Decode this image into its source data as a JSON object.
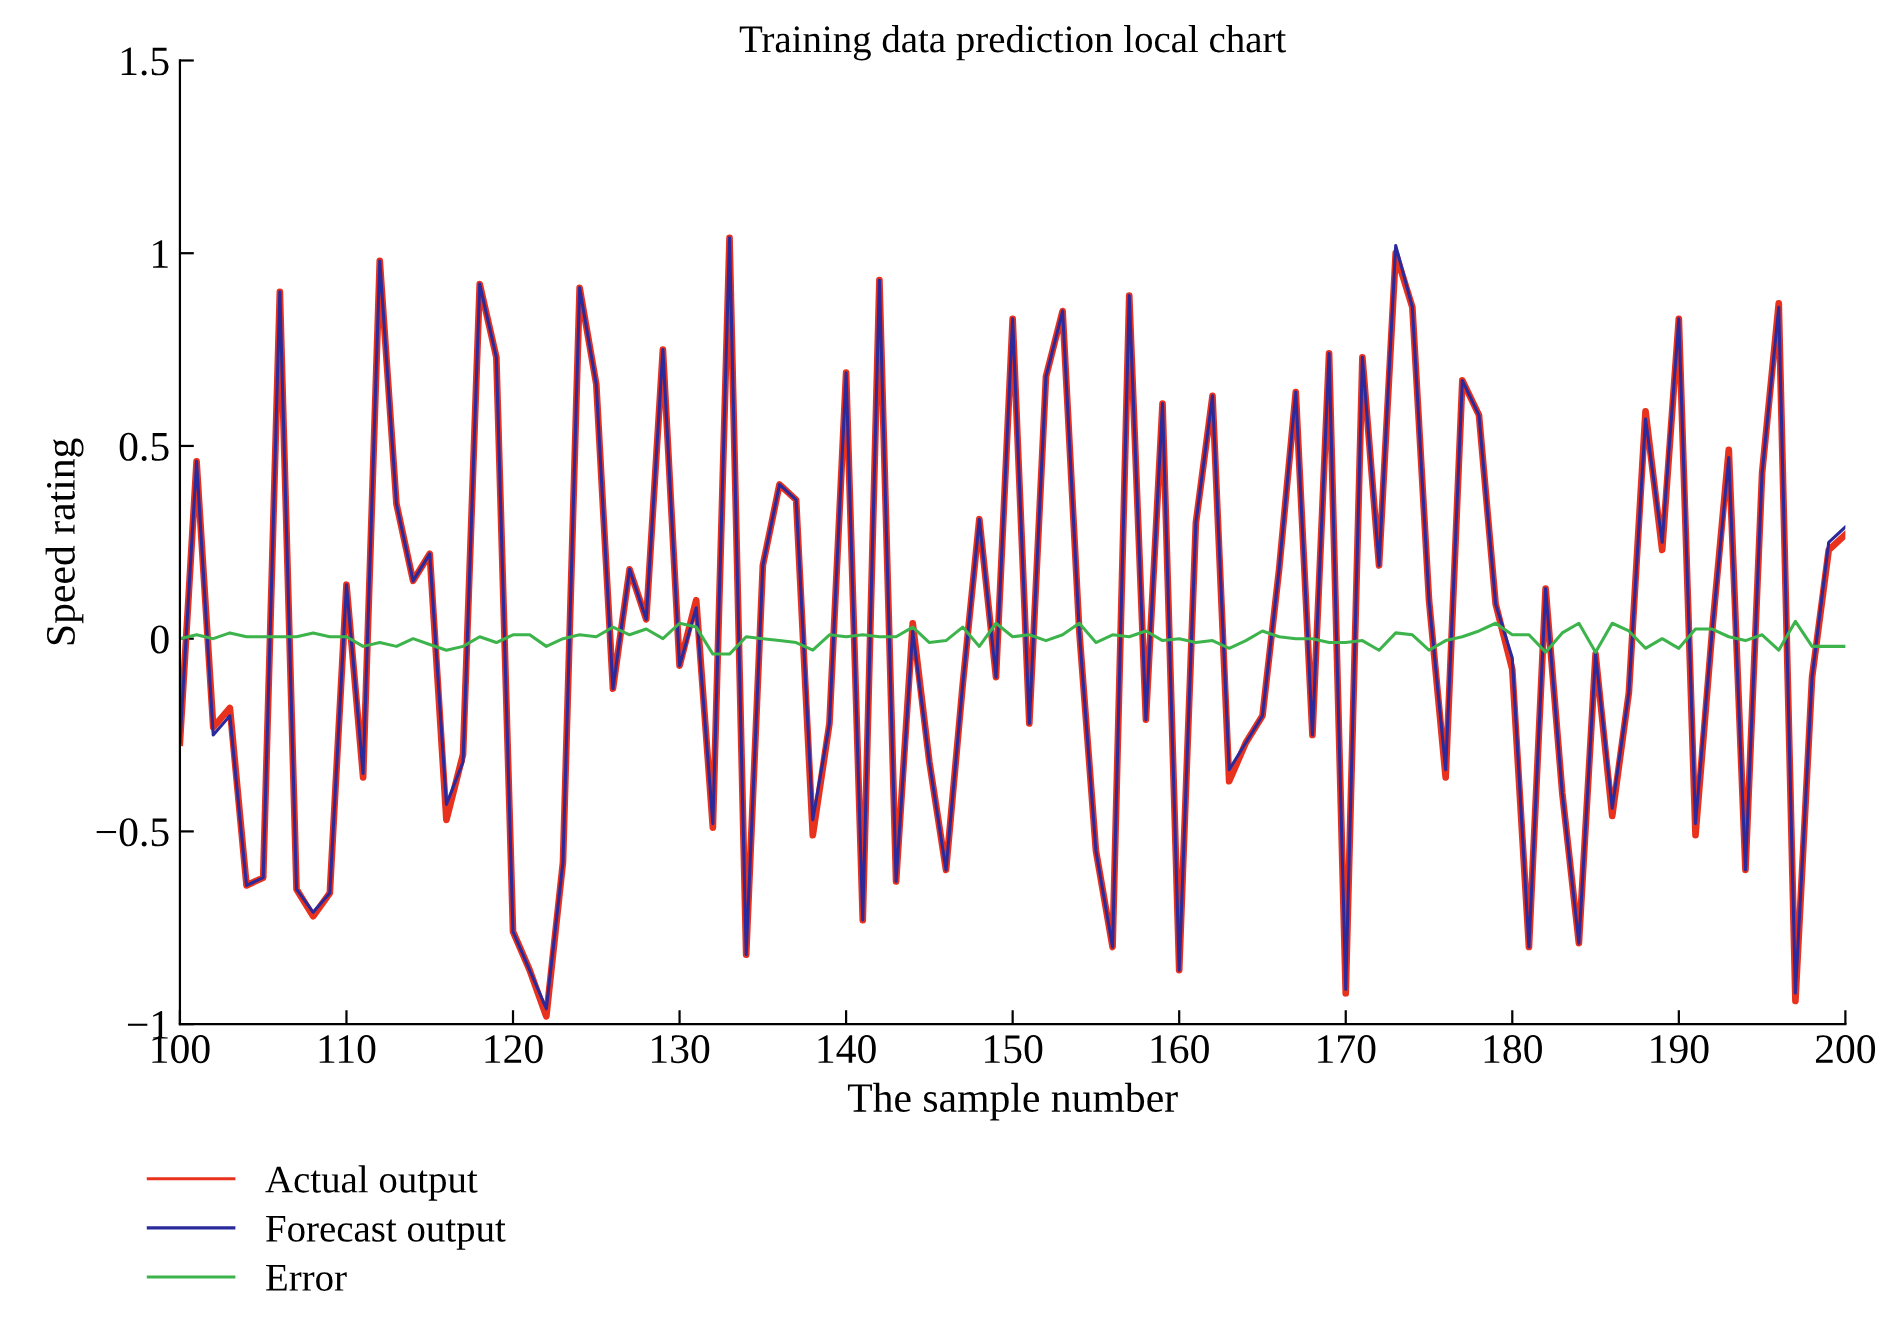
{
  "chart_data": {
    "type": "line",
    "title": "Training data prediction local chart",
    "xlabel": "The sample number",
    "ylabel": "Speed rating",
    "x": [
      100,
      101,
      102,
      103,
      104,
      105,
      106,
      107,
      108,
      109,
      110,
      111,
      112,
      113,
      114,
      115,
      116,
      117,
      118,
      119,
      120,
      121,
      122,
      123,
      124,
      125,
      126,
      127,
      128,
      129,
      130,
      131,
      132,
      133,
      134,
      135,
      136,
      137,
      138,
      139,
      140,
      141,
      142,
      143,
      144,
      145,
      146,
      147,
      148,
      149,
      150,
      151,
      152,
      153,
      154,
      155,
      156,
      157,
      158,
      159,
      160,
      161,
      162,
      163,
      164,
      165,
      166,
      167,
      168,
      169,
      170,
      171,
      172,
      173,
      174,
      175,
      176,
      177,
      178,
      179,
      180,
      181,
      182,
      183,
      184,
      185,
      186,
      187,
      188,
      189,
      190,
      191,
      192,
      193,
      194,
      195,
      196,
      197,
      198,
      199,
      200
    ],
    "series": [
      {
        "name": "Actual output",
        "color": "#e8321e",
        "values": [
          -0.27,
          0.46,
          -0.23,
          -0.18,
          -0.64,
          -0.62,
          0.9,
          -0.65,
          -0.72,
          -0.66,
          0.14,
          -0.36,
          0.98,
          0.35,
          0.15,
          0.22,
          -0.47,
          -0.3,
          0.92,
          0.73,
          -0.76,
          -0.86,
          -0.98,
          -0.58,
          0.91,
          0.66,
          -0.13,
          0.18,
          0.05,
          0.75,
          -0.07,
          0.1,
          -0.49,
          1.04,
          -0.82,
          0.19,
          0.4,
          0.36,
          -0.51,
          -0.22,
          0.69,
          -0.73,
          0.93,
          -0.63,
          0.04,
          -0.32,
          -0.6,
          -0.12,
          0.31,
          -0.1,
          0.83,
          -0.22,
          0.68,
          0.85,
          0.02,
          -0.55,
          -0.8,
          0.89,
          -0.21,
          0.61,
          -0.86,
          0.3,
          0.63,
          -0.37,
          -0.27,
          -0.2,
          0.18,
          0.64,
          -0.25,
          0.74,
          -0.92,
          0.73,
          0.19,
          1.0,
          0.86,
          0.1,
          -0.36,
          0.67,
          0.58,
          0.09,
          -0.08,
          -0.8,
          0.13,
          -0.4,
          -0.79,
          -0.04,
          -0.46,
          -0.14,
          0.59,
          0.23,
          0.83,
          -0.51,
          0.02,
          0.49,
          -0.6,
          0.43,
          0.87,
          -0.94,
          -0.1,
          0.23,
          0.27
        ]
      },
      {
        "name": "Forecast output",
        "color": "#2a2a9c",
        "values": [
          -0.27,
          0.46,
          -0.25,
          -0.2,
          -0.64,
          -0.62,
          0.9,
          -0.65,
          -0.71,
          -0.66,
          0.14,
          -0.35,
          0.98,
          0.35,
          0.15,
          0.22,
          -0.43,
          -0.32,
          0.92,
          0.73,
          -0.76,
          -0.86,
          -0.96,
          -0.58,
          0.91,
          0.66,
          -0.13,
          0.18,
          0.05,
          0.75,
          -0.07,
          0.08,
          -0.48,
          1.04,
          -0.82,
          0.19,
          0.4,
          0.36,
          -0.47,
          -0.22,
          0.69,
          -0.73,
          0.93,
          -0.63,
          0.02,
          -0.32,
          -0.6,
          -0.12,
          0.31,
          -0.1,
          0.83,
          -0.22,
          0.68,
          0.85,
          0.02,
          -0.55,
          -0.8,
          0.89,
          -0.21,
          0.61,
          -0.86,
          0.3,
          0.63,
          -0.34,
          -0.27,
          -0.2,
          0.18,
          0.64,
          -0.25,
          0.74,
          -0.91,
          0.73,
          0.19,
          1.02,
          0.86,
          0.1,
          -0.34,
          0.67,
          0.58,
          0.09,
          -0.05,
          -0.8,
          0.13,
          -0.4,
          -0.79,
          -0.04,
          -0.44,
          -0.14,
          0.57,
          0.25,
          0.83,
          -0.48,
          0.02,
          0.47,
          -0.6,
          0.43,
          0.86,
          -0.92,
          -0.1,
          0.25,
          0.29
        ]
      },
      {
        "name": "Error",
        "color": "#3cb44b",
        "values": [
          0,
          0.01,
          0,
          0.015,
          0.005,
          0.005,
          0.005,
          0.005,
          0.015,
          0.005,
          0.005,
          -0.02,
          -0.01,
          -0.02,
          0,
          -0.015,
          -0.03,
          -0.02,
          0.005,
          -0.01,
          0.01,
          0.01,
          -0.02,
          0,
          0.01,
          0.005,
          0.03,
          0.01,
          0.025,
          0,
          0.04,
          0.03,
          -0.04,
          -0.04,
          0.005,
          0,
          -0.005,
          -0.01,
          -0.03,
          0.01,
          0.005,
          0.01,
          0.005,
          0.005,
          0.03,
          -0.01,
          -0.005,
          0.03,
          -0.02,
          0.04,
          0.005,
          0.01,
          -0.005,
          0.01,
          0.04,
          -0.01,
          0.01,
          0.005,
          0.02,
          -0.005,
          0,
          -0.01,
          -0.005,
          -0.025,
          -0.005,
          0.02,
          0.005,
          0,
          0,
          -0.01,
          -0.01,
          -0.005,
          -0.03,
          0.015,
          0.01,
          -0.03,
          -0.005,
          0.005,
          0.02,
          0.04,
          0.01,
          0.01,
          -0.035,
          0.015,
          0.04,
          -0.035,
          0.04,
          0.02,
          -0.025,
          0,
          -0.025,
          0.025,
          0.025,
          0.005,
          -0.005,
          0.01,
          -0.03,
          0.045,
          -0.02,
          -0.02,
          -0.02
        ]
      }
    ],
    "xlim": [
      100,
      200
    ],
    "xticks": [
      100,
      110,
      120,
      130,
      140,
      150,
      160,
      170,
      180,
      190,
      200
    ],
    "ylim": [
      -1,
      1.5
    ],
    "yticks": [
      {
        "value": -1,
        "label": "−1"
      },
      {
        "value": -0.5,
        "label": "−0.5"
      },
      0,
      0.5,
      1,
      1.5
    ],
    "grid": false,
    "legend": "bottom left",
    "marker": "none",
    "line_style": "solid"
  }
}
